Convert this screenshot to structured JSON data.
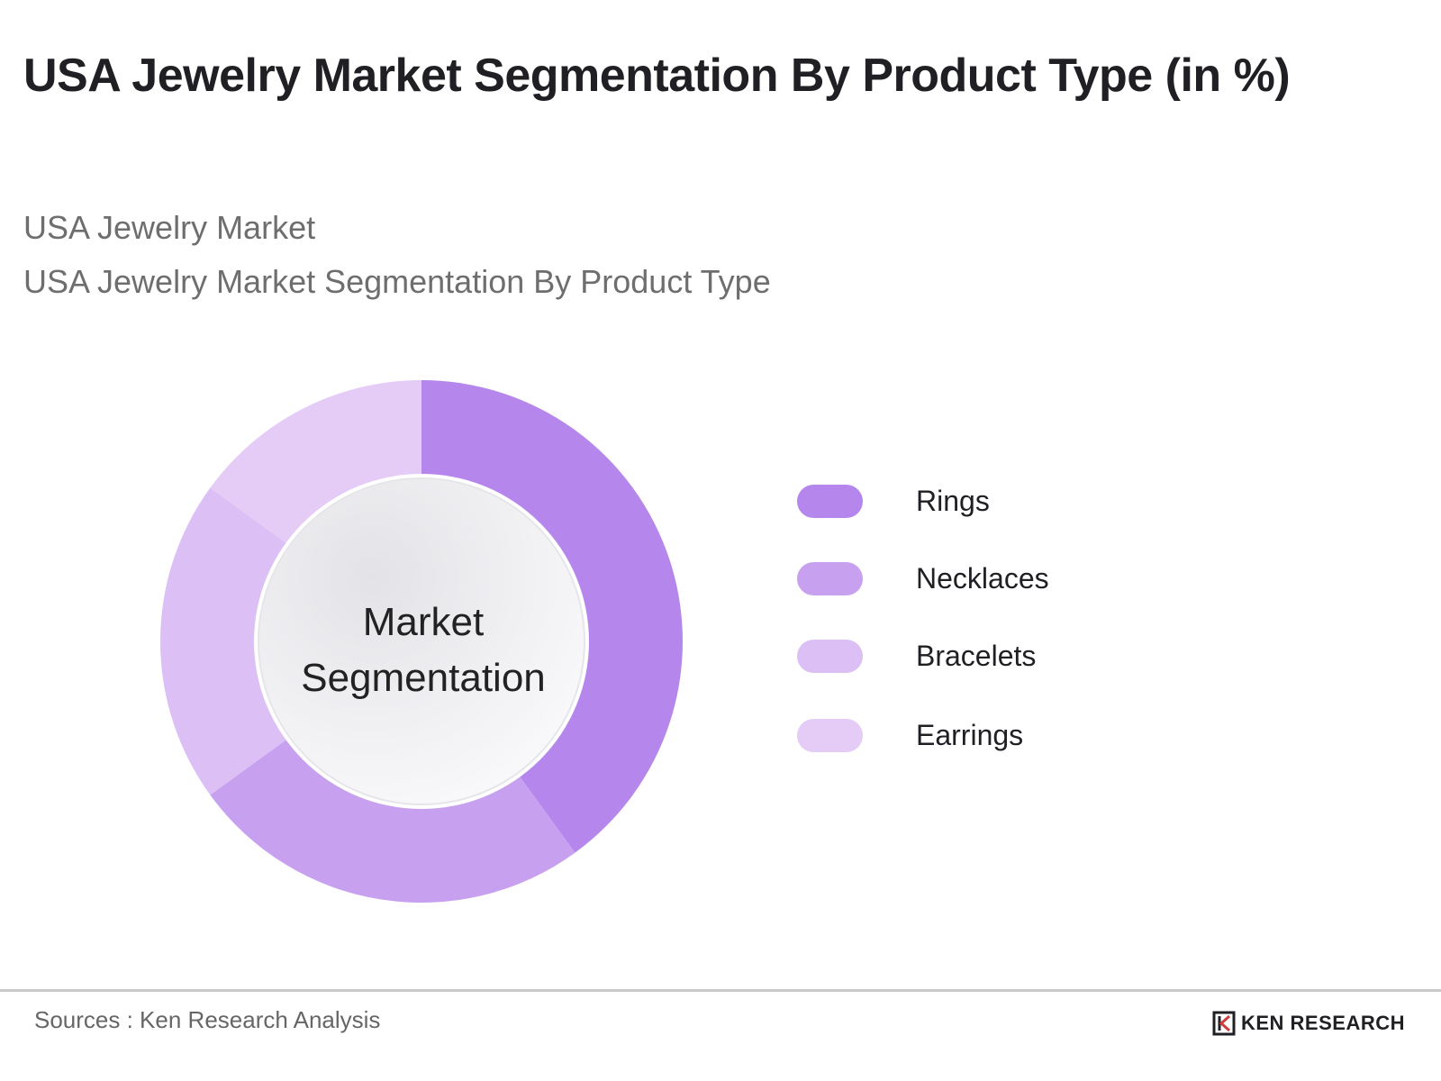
{
  "header": {
    "title": "USA Jewelry Market Segmentation By Product Type (in %)",
    "breadcrumb": [
      "USA Jewelry Market",
      "USA Jewelry Market Segmentation By Product Type"
    ]
  },
  "chart_data": {
    "type": "pie",
    "title": "USA Jewelry Market Segmentation By Product Type (in %)",
    "center_label_lines": [
      "Market",
      "Segmentation"
    ],
    "categories": [
      "Rings",
      "Necklaces",
      "Bracelets",
      "Earrings"
    ],
    "values": [
      40,
      25,
      20,
      15
    ],
    "colors": [
      "#b586ec",
      "#c7a0ef",
      "#dbbff5",
      "#e4ccf7"
    ],
    "legend_position": "right"
  },
  "footer": {
    "source": "Sources : Ken Research Analysis",
    "brand": "KEN RESEARCH",
    "brand_icon": "ken-research-logo-icon"
  }
}
